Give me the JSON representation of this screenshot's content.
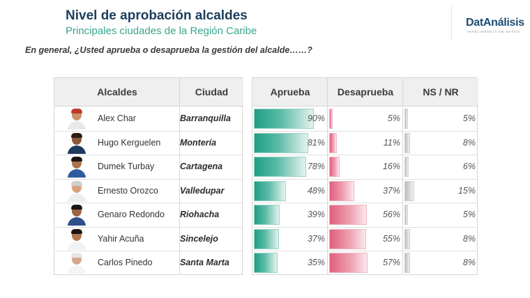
{
  "header": {
    "title": "Nivel de aprobación alcaldes",
    "subtitle": "Principales ciudades de la Región Caribe",
    "question": "En general, ¿Usted aprueba o desaprueba la gestión del alcalde……?"
  },
  "brand": {
    "name": "DatAnálisis",
    "tagline": "INTELIGENCIA DE DATOS",
    "color": "#1c4e74"
  },
  "chart_data": {
    "type": "table",
    "columns": [
      "Alcaldes",
      "Ciudad",
      "Aprueba",
      "Desaprueba",
      "NS / NR"
    ],
    "rows": [
      {
        "alcalde": "Alex Char",
        "ciudad": "Barranquilla",
        "aprueba": 90,
        "desaprueba": 5,
        "nsnr": 5
      },
      {
        "alcalde": "Hugo Kerguelen",
        "ciudad": "Montería",
        "aprueba": 81,
        "desaprueba": 11,
        "nsnr": 8
      },
      {
        "alcalde": "Dumek Turbay",
        "ciudad": "Cartagena",
        "aprueba": 78,
        "desaprueba": 16,
        "nsnr": 6
      },
      {
        "alcalde": "Ernesto Orozco",
        "ciudad": "Valledupar",
        "aprueba": 48,
        "desaprueba": 37,
        "nsnr": 15
      },
      {
        "alcalde": "Genaro Redondo",
        "ciudad": "Riohacha",
        "aprueba": 39,
        "desaprueba": 56,
        "nsnr": 5
      },
      {
        "alcalde": "Yahir Acuña",
        "ciudad": "Sincelejo",
        "aprueba": 37,
        "desaprueba": 55,
        "nsnr": 8
      },
      {
        "alcalde": "Carlos Pinedo",
        "ciudad": "Santa Marta",
        "aprueba": 35,
        "desaprueba": 57,
        "nsnr": 8
      }
    ],
    "value_suffix": "%",
    "colors": {
      "aprueba": "#1f9f85",
      "desaprueba": "#e0607d",
      "nsnr": "#bdbdbd"
    }
  }
}
